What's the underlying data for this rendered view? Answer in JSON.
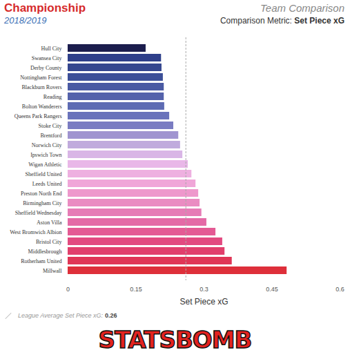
{
  "chart_data": {
    "type": "bar",
    "orientation": "horizontal",
    "title": "Championship",
    "subtitle": "2018/2019",
    "header": "Team Comparison",
    "metric_label": "Comparison Metric:",
    "metric": "Set Piece xG",
    "x_label": "Set Piece xG",
    "average_label": "League Average Set Piece xG:",
    "average": 0.26,
    "logo": "STATSBOMB",
    "categories": [
      "Hull City",
      "Swansea City",
      "Derby County",
      "Nottingham Forest",
      "Blackburn Rovers",
      "Reading",
      "Bolton Wanderers",
      "Queens Park Rangers",
      "Stoke City",
      "Brentford",
      "Norwich City",
      "Ipswich Town",
      "Wigan Athletic",
      "Sheffield United",
      "Leeds United",
      "Preston North End",
      "Birmingham City",
      "Sheffield Wednesday",
      "Aston Villa",
      "West Bromwich Albion",
      "Bristol City",
      "Middlesbrough",
      "Rotherham United",
      "Millwall"
    ],
    "values": [
      0.172,
      0.206,
      0.207,
      0.21,
      0.212,
      0.212,
      0.213,
      0.224,
      0.233,
      0.244,
      0.248,
      0.253,
      0.265,
      0.273,
      0.282,
      0.288,
      0.291,
      0.295,
      0.306,
      0.326,
      0.341,
      0.346,
      0.362,
      0.483
    ],
    "colors": [
      "#1b1d4d",
      "#2e3f8a",
      "#34468f",
      "#3c4f98",
      "#4a5aa3",
      "#5462ab",
      "#5d6bb3",
      "#6a73bb",
      "#7a7cc2",
      "#a094d0",
      "#c0abdd",
      "#d9b6e6",
      "#e9b7e8",
      "#eeb0e0",
      "#f0a6d8",
      "#ee98cc",
      "#ea8cc2",
      "#e67cb6",
      "#e46aa6",
      "#e45a94",
      "#e24a80",
      "#e13f6c",
      "#e03656",
      "#de2f3a"
    ],
    "xlim": [
      0,
      0.6
    ],
    "xticks": [
      0,
      0.15,
      0.3,
      0.45,
      0.6
    ],
    "grid": false
  }
}
